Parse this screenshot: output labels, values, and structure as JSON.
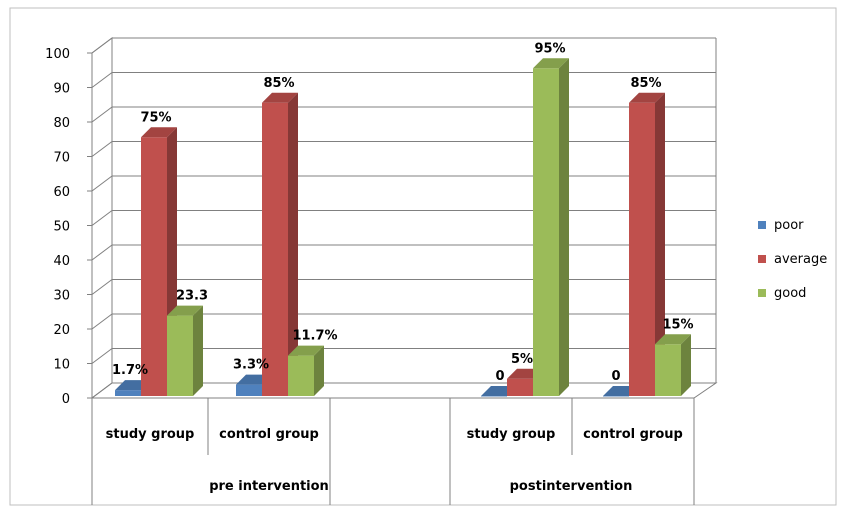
{
  "chart_data": {
    "type": "bar",
    "categories": [
      {
        "group": "pre intervention",
        "label": "study group"
      },
      {
        "group": "pre intervention",
        "label": "control group"
      },
      {
        "group": "postintervention",
        "label": "study group"
      },
      {
        "group": "postintervention",
        "label": "control group"
      }
    ],
    "groups": [
      "pre intervention",
      "postintervention"
    ],
    "series": [
      {
        "name": "poor",
        "color": "#4F81BD",
        "values": [
          1.7,
          3.3,
          0,
          0
        ],
        "labels": [
          "1.7%",
          "3.3%",
          "0",
          "0"
        ]
      },
      {
        "name": "average",
        "color": "#C0504D",
        "values": [
          75,
          85,
          5,
          85
        ],
        "labels": [
          "75%",
          "85%",
          "5%",
          "85%"
        ]
      },
      {
        "name": "good",
        "color": "#9BBB59",
        "values": [
          23.3,
          11.7,
          95,
          15
        ],
        "labels": [
          "23.3",
          "11.7%",
          "95%",
          "15%"
        ]
      }
    ],
    "ylim": [
      0,
      100
    ],
    "yticks": [
      "0",
      "10",
      "20",
      "30",
      "40",
      "50",
      "60",
      "70",
      "80",
      "90",
      "100"
    ],
    "grid": true,
    "legend_position": "right",
    "style": "3d-column"
  }
}
